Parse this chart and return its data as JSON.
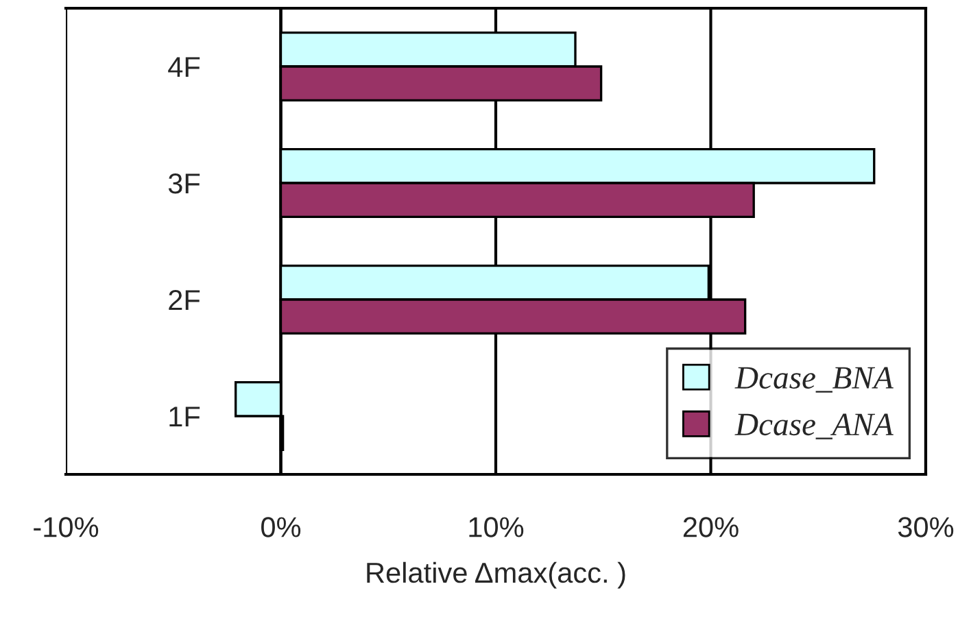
{
  "chart_data": {
    "type": "bar",
    "orientation": "horizontal",
    "xlabel": "Relative Δmax(acc. )",
    "categories": [
      "4F",
      "3F",
      "2F",
      "1F"
    ],
    "series": [
      {
        "name": "Dcase_BNA",
        "color": "#ccffff",
        "values": [
          13.7,
          27.6,
          19.9,
          -2.1
        ]
      },
      {
        "name": "Dcase_ANA",
        "color": "#993366",
        "values": [
          14.9,
          22.0,
          21.6,
          0.1
        ]
      }
    ],
    "xlim": [
      -10,
      30
    ],
    "xticks": [
      {
        "value": -10,
        "label": "-10%"
      },
      {
        "value": 0,
        "label": "0%"
      },
      {
        "value": 10,
        "label": "10%"
      },
      {
        "value": 20,
        "label": "20%"
      },
      {
        "value": 30,
        "label": "30%"
      }
    ],
    "grid": "x",
    "legend": "bottom right"
  }
}
